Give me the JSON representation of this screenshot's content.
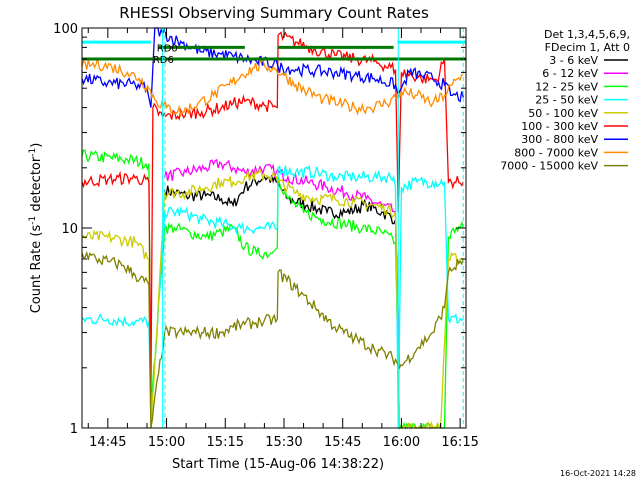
{
  "chart_data": {
    "type": "line",
    "title": "RHESSI Observing Summary Count Rates",
    "xlabel": "Start Time (15-Aug-06 14:38:22)",
    "ylabel_main": "Count Rate (s",
    "ylabel_sup1": "-1",
    "ylabel_mid": " detector",
    "ylabel_sup2": "-1",
    "ylabel_end": ")",
    "y_scale": "log",
    "ylim": [
      1,
      100
    ],
    "xlim_minutes": [
      878.4,
      976.5
    ],
    "x_ticks": [
      {
        "label": "14:45",
        "minutes": 885
      },
      {
        "label": "15:00",
        "minutes": 900
      },
      {
        "label": "15:15",
        "minutes": 915
      },
      {
        "label": "15:30",
        "minutes": 930
      },
      {
        "label": "15:45",
        "minutes": 945
      },
      {
        "label": "16:00",
        "minutes": 960
      },
      {
        "label": "16:15",
        "minutes": 975
      }
    ],
    "y_ticks": [
      {
        "label": "1",
        "value": 1
      },
      {
        "label": "10",
        "value": 10
      },
      {
        "label": "100",
        "value": 100
      }
    ],
    "legend_header": [
      "Det 1,3,4,5,6,9,",
      "FDecim 1, Att 0"
    ],
    "legend_position": "right",
    "date_stamp": "16-Oct-2021 14:28",
    "annotations": [
      {
        "text": "RD0",
        "x_min": 897.5,
        "y": 80
      },
      {
        "text": "RD6",
        "x_min": 896.5,
        "y": 70
      }
    ],
    "night_intervals_min": [
      [
        878.4,
        895.5
      ],
      [
        928.5,
        958.5
      ]
    ],
    "dashed_lines_min": [
      899.6,
      975.8
    ],
    "orbit_edges_min": [
      899,
      959.2
    ],
    "series": [
      {
        "name": "3 - 6 keV",
        "color": "#000000",
        "points": [
          [
            899.5,
            15.5
          ],
          [
            905,
            14.5
          ],
          [
            910,
            14.5
          ],
          [
            914,
            14
          ],
          [
            917,
            13
          ],
          [
            920,
            16
          ],
          [
            925,
            18
          ],
          [
            928,
            17
          ],
          [
            931,
            14
          ],
          [
            936,
            13
          ],
          [
            941,
            12
          ],
          [
            946,
            12
          ],
          [
            951,
            13
          ],
          [
            955,
            12
          ],
          [
            958.5,
            11
          ],
          [
            959.5,
            2
          ]
        ]
      },
      {
        "name": "6 - 12 keV",
        "color": "#ff00ff",
        "points": [
          [
            899.5,
            18
          ],
          [
            905,
            19
          ],
          [
            910,
            20
          ],
          [
            914,
            21
          ],
          [
            917,
            20
          ],
          [
            920,
            19
          ],
          [
            925,
            20
          ],
          [
            928,
            19
          ],
          [
            931,
            18
          ],
          [
            936,
            17
          ],
          [
            941,
            16
          ],
          [
            946,
            15
          ],
          [
            951,
            14
          ],
          [
            955,
            13
          ],
          [
            958.5,
            12
          ],
          [
            959.5,
            2
          ]
        ]
      },
      {
        "name": "12 - 25 keV",
        "color": "#00ff00",
        "points": [
          [
            878.4,
            23
          ],
          [
            890,
            22
          ],
          [
            895.5,
            21
          ],
          [
            896,
            1.2
          ],
          [
            899.5,
            10
          ],
          [
            902,
            10
          ],
          [
            906,
            9.5
          ],
          [
            910,
            9
          ],
          [
            914,
            9.5
          ],
          [
            917,
            10
          ],
          [
            920,
            8
          ],
          [
            923,
            7.5
          ],
          [
            927,
            7.5
          ],
          [
            928.3,
            8
          ],
          [
            928.5,
            18
          ],
          [
            931,
            14
          ],
          [
            935,
            12
          ],
          [
            940,
            11
          ],
          [
            945,
            10.5
          ],
          [
            950,
            10
          ],
          [
            955,
            9.5
          ],
          [
            958.5,
            8.5
          ],
          [
            959.5,
            1
          ],
          [
            971,
            1
          ],
          [
            972,
            9
          ],
          [
            974,
            10
          ],
          [
            975.8,
            10
          ]
        ]
      },
      {
        "name": "25 - 50 keV",
        "color": "#00ffff",
        "points": [
          [
            878.4,
            3.5
          ],
          [
            885,
            3.5
          ],
          [
            892,
            3.4
          ],
          [
            895.5,
            3.4
          ],
          [
            896,
            1
          ],
          [
            899.5,
            12
          ],
          [
            904,
            12
          ],
          [
            909,
            11
          ],
          [
            914,
            10.5
          ],
          [
            919,
            10
          ],
          [
            923,
            10
          ],
          [
            928.3,
            10
          ],
          [
            928.5,
            20
          ],
          [
            933,
            19
          ],
          [
            938,
            19
          ],
          [
            943,
            18
          ],
          [
            948,
            18
          ],
          [
            953,
            18
          ],
          [
            958,
            18
          ],
          [
            958.5,
            16
          ],
          [
            959.2,
            1
          ],
          [
            960,
            16
          ],
          [
            964,
            17
          ],
          [
            968,
            17
          ],
          [
            971,
            17
          ],
          [
            972,
            3.5
          ],
          [
            975.8,
            3.5
          ]
        ]
      },
      {
        "name": "50 - 100 keV",
        "color": "#cccc00",
        "points": [
          [
            878.4,
            9
          ],
          [
            885,
            9
          ],
          [
            892,
            8.5
          ],
          [
            895.5,
            7
          ],
          [
            896,
            1
          ],
          [
            899.5,
            15
          ],
          [
            905,
            15
          ],
          [
            910,
            16
          ],
          [
            914,
            17
          ],
          [
            917,
            17
          ],
          [
            920,
            18
          ],
          [
            925,
            18.5
          ],
          [
            928,
            18
          ],
          [
            928.5,
            17
          ],
          [
            933,
            15
          ],
          [
            938,
            14
          ],
          [
            943,
            14
          ],
          [
            948,
            13.5
          ],
          [
            953,
            13
          ],
          [
            958.5,
            12
          ],
          [
            959.5,
            1
          ],
          [
            970,
            1
          ],
          [
            972,
            7
          ],
          [
            975.8,
            7
          ]
        ]
      },
      {
        "name": "100 - 300 keV",
        "color": "#ff0000",
        "points": [
          [
            878.4,
            17
          ],
          [
            885,
            17.5
          ],
          [
            892,
            17.8
          ],
          [
            895.5,
            17
          ],
          [
            896,
            1.5
          ],
          [
            896.5,
            40
          ],
          [
            899,
            36
          ],
          [
            904,
            37
          ],
          [
            909,
            38
          ],
          [
            914,
            40
          ],
          [
            917,
            42
          ],
          [
            920,
            43
          ],
          [
            925,
            41
          ],
          [
            928.3,
            40
          ],
          [
            928.5,
            92
          ],
          [
            933,
            85
          ],
          [
            938,
            78
          ],
          [
            943,
            73
          ],
          [
            948,
            70
          ],
          [
            953,
            68
          ],
          [
            958.5,
            62
          ],
          [
            959.2,
            12
          ],
          [
            960,
            60
          ],
          [
            965,
            56
          ],
          [
            969,
            55
          ],
          [
            971,
            70
          ],
          [
            972,
            17
          ],
          [
            975.8,
            17
          ]
        ]
      },
      {
        "name": "300 - 800 keV",
        "color": "#0000ff",
        "points": [
          [
            878.4,
            56
          ],
          [
            885,
            53
          ],
          [
            892,
            52
          ],
          [
            895,
            50
          ],
          [
            896,
            40
          ],
          [
            897,
            100
          ],
          [
            899,
            94
          ],
          [
            904,
            84
          ],
          [
            909,
            76
          ],
          [
            914,
            74
          ],
          [
            917,
            72
          ],
          [
            920,
            70
          ],
          [
            923,
            68
          ],
          [
            928.3,
            66
          ],
          [
            928.5,
            64
          ],
          [
            933,
            62
          ],
          [
            938,
            61
          ],
          [
            943,
            60
          ],
          [
            948,
            58
          ],
          [
            953,
            56
          ],
          [
            958.5,
            52
          ],
          [
            959.2,
            46
          ],
          [
            962,
            60
          ],
          [
            965,
            58
          ],
          [
            968,
            56
          ],
          [
            971,
            52
          ],
          [
            973,
            46
          ],
          [
            975.8,
            45
          ]
        ]
      },
      {
        "name": "800 - 7000 keV",
        "color": "#ff8c00",
        "points": [
          [
            878.4,
            64
          ],
          [
            882,
            66
          ],
          [
            886,
            64
          ],
          [
            890,
            60
          ],
          [
            893,
            56
          ],
          [
            895.5,
            50
          ],
          [
            897,
            44
          ],
          [
            900,
            40
          ],
          [
            904,
            38
          ],
          [
            908,
            42
          ],
          [
            912,
            46
          ],
          [
            916,
            52
          ],
          [
            919,
            58
          ],
          [
            922,
            63
          ],
          [
            925,
            65
          ],
          [
            928,
            62
          ],
          [
            930,
            58
          ],
          [
            933,
            52
          ],
          [
            936,
            48
          ],
          [
            940,
            44
          ],
          [
            944,
            42
          ],
          [
            948,
            40
          ],
          [
            952,
            40
          ],
          [
            956,
            42
          ],
          [
            958.5,
            45
          ],
          [
            960,
            48
          ],
          [
            964,
            46
          ],
          [
            968,
            42
          ],
          [
            971,
            46
          ],
          [
            973,
            52
          ],
          [
            975.8,
            58
          ]
        ]
      },
      {
        "name": "7000 - 15000 keV",
        "color": "#808000",
        "points": [
          [
            878.4,
            7.5
          ],
          [
            882,
            7
          ],
          [
            885,
            6.8
          ],
          [
            889,
            6.5
          ],
          [
            892,
            5.8
          ],
          [
            895.5,
            5.2
          ],
          [
            896,
            1
          ],
          [
            899.5,
            3
          ],
          [
            904,
            3
          ],
          [
            909,
            3
          ],
          [
            914,
            3
          ],
          [
            917,
            3.2
          ],
          [
            920,
            3.3
          ],
          [
            924,
            3.4
          ],
          [
            928.3,
            3.5
          ],
          [
            928.5,
            6
          ],
          [
            933,
            5
          ],
          [
            938,
            4
          ],
          [
            943,
            3.2
          ],
          [
            948,
            2.8
          ],
          [
            953,
            2.5
          ],
          [
            958.5,
            2.2
          ],
          [
            959.5,
            2
          ],
          [
            964,
            2.5
          ],
          [
            968,
            3
          ],
          [
            971,
            4
          ],
          [
            972,
            6
          ],
          [
            975.8,
            7
          ]
        ]
      }
    ]
  }
}
